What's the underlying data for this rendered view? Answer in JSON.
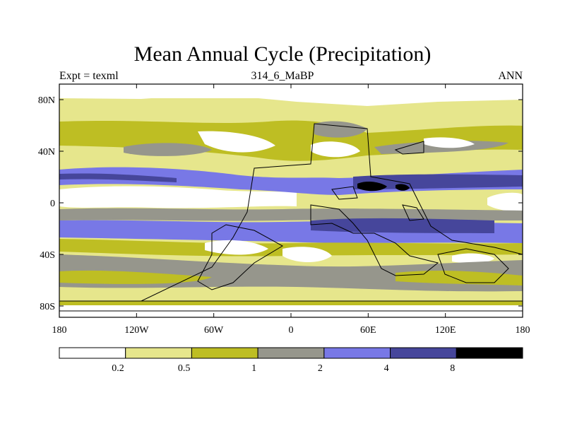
{
  "title": "Mean Annual Cycle (Precipitation)",
  "subtitle_left": "Expt = texml",
  "subtitle_center": "314_6_MaBP",
  "subtitle_right": "ANN",
  "lat_ticks": [
    {
      "label": "80N",
      "value": 80
    },
    {
      "label": "40N",
      "value": 40
    },
    {
      "label": "0",
      "value": 0
    },
    {
      "label": "40S",
      "value": -40
    },
    {
      "label": "80S",
      "value": -80
    }
  ],
  "lon_ticks": [
    {
      "label": "180",
      "value": -180
    },
    {
      "label": "120W",
      "value": -120
    },
    {
      "label": "60W",
      "value": -60
    },
    {
      "label": "0",
      "value": 0
    },
    {
      "label": "60E",
      "value": 60
    },
    {
      "label": "120E",
      "value": 120
    },
    {
      "label": "180",
      "value": 180
    }
  ],
  "colorbar": {
    "colors": [
      "#ffffff",
      "#e6e68c",
      "#bebe23",
      "#96968c",
      "#7878e6",
      "#46469b",
      "#000000"
    ],
    "labels": [
      "0.2",
      "0.5",
      "1",
      "2",
      "4",
      "8"
    ]
  },
  "colors": {
    "white": "#ffffff",
    "pale": "#e6e68c",
    "olive": "#bebe23",
    "grey": "#96968c",
    "blue": "#7878e6",
    "navy": "#46469b",
    "black": "#000000"
  }
}
